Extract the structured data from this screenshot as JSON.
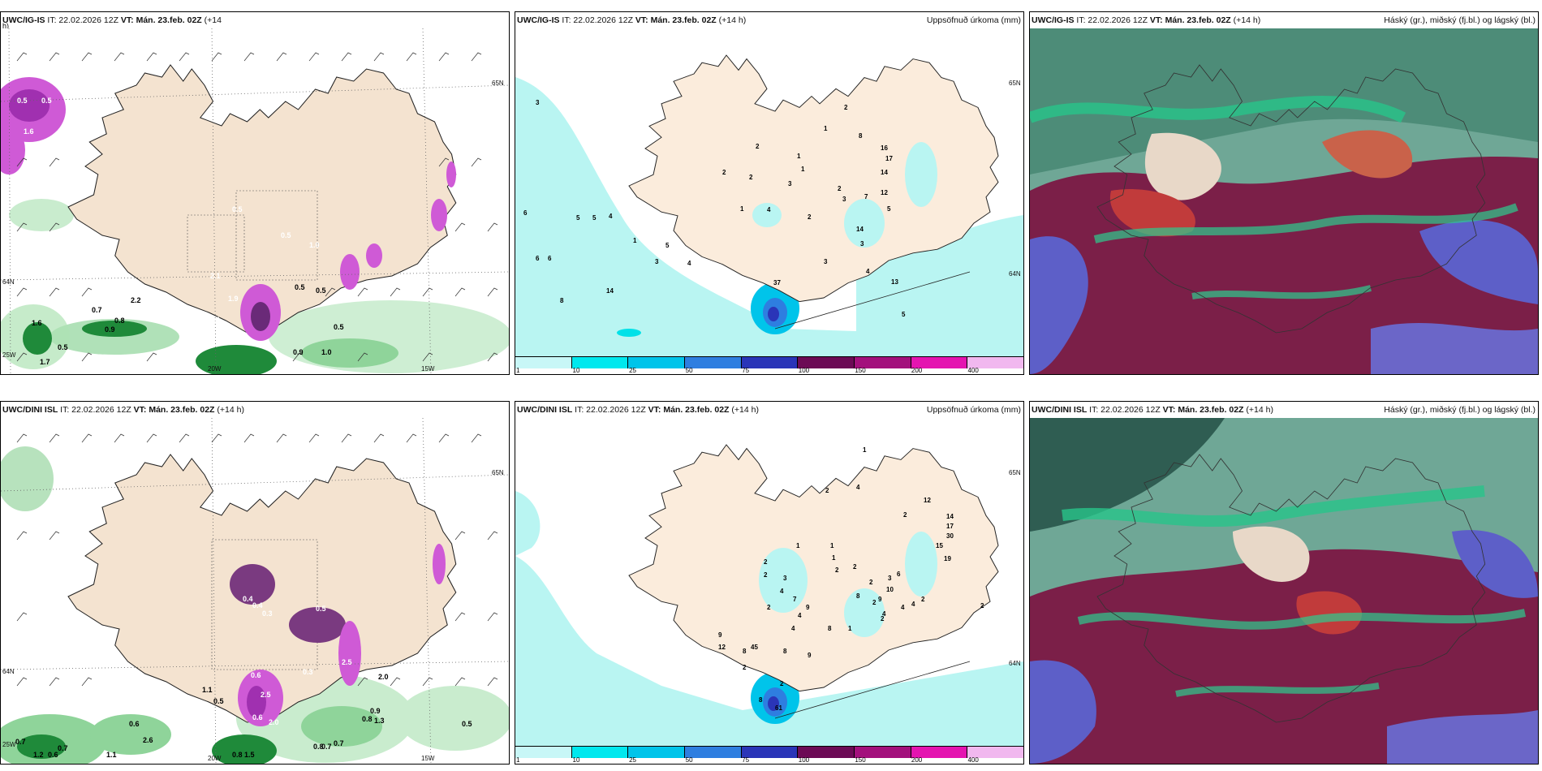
{
  "colors": {
    "land": "#f7ebdc",
    "precip_light": "#b9f5f2",
    "precip_cyan": "#00e1e8",
    "precip_blue": "#1a4fd1",
    "wind_green": "#1f8a3a",
    "wind_purple": "#a030b0",
    "cloud_high": "#5b8f78",
    "cloud_mid": "#7b1f48",
    "cloud_low": "#5d5fc8"
  },
  "panels": {
    "r1c1": {
      "header_model": "UWC/IG-IS",
      "header_it": "IT: 22.02.2026 12Z",
      "header_vt": "VT: Mán. 23.feb. 02Z",
      "header_lead": "(+14",
      "header_lead2": "h)",
      "labels": [
        {
          "text": "0.5",
          "style": "w"
        },
        {
          "text": "0.5",
          "style": "w"
        },
        {
          "text": "1.6",
          "style": "w"
        },
        {
          "text": "2.1",
          "style": "w"
        },
        {
          "text": "1.9",
          "style": "w"
        },
        {
          "text": "5.1",
          "style": "w"
        },
        {
          "text": "0.7",
          "style": "b"
        },
        {
          "text": "1.6",
          "style": "b"
        },
        {
          "text": "0.5",
          "style": "b"
        },
        {
          "text": "0.8",
          "style": "b"
        },
        {
          "text": "0.9",
          "style": "b"
        },
        {
          "text": "0.5",
          "style": "b"
        },
        {
          "text": "0.5",
          "style": "b"
        },
        {
          "text": "0.5",
          "style": "b"
        },
        {
          "text": "0.9",
          "style": "b"
        },
        {
          "text": "1.0",
          "style": "b"
        },
        {
          "text": "2.2",
          "style": "b"
        },
        {
          "text": "1.7",
          "style": "b"
        },
        {
          "text": "0.5",
          "style": "w"
        },
        {
          "text": "0.5",
          "style": "w"
        },
        {
          "text": "1.0",
          "style": "w"
        }
      ],
      "axis_labels": [
        "20W",
        "15W",
        "25W",
        "64N",
        "65N"
      ]
    },
    "r1c2": {
      "header_model": "UWC/IG-IS",
      "header_it": "IT: 22.02.2026 12Z",
      "header_vt": "VT: Mán. 23.feb. 02Z",
      "header_lead": "(+14 h)",
      "title_right": "Uppsöfnuð úrkoma (mm)",
      "labels": [
        "3",
        "6",
        "5",
        "5",
        "4",
        "6",
        "6",
        "8",
        "14",
        "1",
        "5",
        "3",
        "4",
        "2",
        "1",
        "4",
        "2",
        "1",
        "1",
        "3",
        "2",
        "3",
        "2",
        "1",
        "2",
        "8",
        "16",
        "17",
        "14",
        "12",
        "7",
        "5",
        "14",
        "3",
        "3",
        "4",
        "13",
        "5",
        "37",
        "2"
      ],
      "colorbar_labels": [
        "1",
        "10",
        "25",
        "50",
        "75",
        "100",
        "150",
        "200",
        "400"
      ],
      "colorbar_colors": [
        "#c8f7f7",
        "#00e8ee",
        "#00c4ea",
        "#2e7ee0",
        "#2a35b8",
        "#6c0a55",
        "#a3107c",
        "#e414b0",
        "#f1b8ef"
      ],
      "axis_labels": [
        "65N",
        "64N"
      ]
    },
    "r1c3": {
      "header_model": "UWC/IG-IS",
      "header_it": "IT: 22.02.2026 12Z",
      "header_vt": "VT: Mán. 23.feb. 02Z",
      "header_lead": "(+14 h)",
      "title_right": "Háský (gr.), miðský (fj.bl.) og lágský (bl.)"
    },
    "r2c1": {
      "header_model": "UWC/DINI ISL",
      "header_it": "IT: 22.02.2026 12Z",
      "header_vt": "VT: Mán. 23.feb. 02Z",
      "header_lead": "(+14 h)",
      "labels": [
        {
          "text": "0.4",
          "style": "w"
        },
        {
          "text": "0.4",
          "style": "w"
        },
        {
          "text": "0.3",
          "style": "w"
        },
        {
          "text": "0.5",
          "style": "w"
        },
        {
          "text": "0.6",
          "style": "w"
        },
        {
          "text": "2.5",
          "style": "w"
        },
        {
          "text": "0.6",
          "style": "w"
        },
        {
          "text": "2.0",
          "style": "w"
        },
        {
          "text": "0.3",
          "style": "w"
        },
        {
          "text": "2.5",
          "style": "w"
        },
        {
          "text": "1.1",
          "style": "b"
        },
        {
          "text": "0.5",
          "style": "b"
        },
        {
          "text": "0.6",
          "style": "b"
        },
        {
          "text": "2.6",
          "style": "b"
        },
        {
          "text": "1.1",
          "style": "b"
        },
        {
          "text": "0.7",
          "style": "b"
        },
        {
          "text": "1.2",
          "style": "b"
        },
        {
          "text": "0.6",
          "style": "b"
        },
        {
          "text": "0.7",
          "style": "b"
        },
        {
          "text": "0.9",
          "style": "b"
        },
        {
          "text": "0.8",
          "style": "b"
        },
        {
          "text": "1.3",
          "style": "b"
        },
        {
          "text": "0.8",
          "style": "b"
        },
        {
          "text": "0.7",
          "style": "b"
        },
        {
          "text": "0.7",
          "style": "b"
        },
        {
          "text": "0.5",
          "style": "b"
        },
        {
          "text": "2.0",
          "style": "b"
        },
        {
          "text": "1.5",
          "style": "b"
        },
        {
          "text": "0.8",
          "style": "b"
        }
      ],
      "axis_labels": [
        "20W",
        "15W",
        "25W",
        "64N",
        "65N"
      ]
    },
    "r2c2": {
      "header_model": "UWC/DINI ISL",
      "header_it": "IT: 22.02.2026 12Z",
      "header_vt": "VT: Mán. 23.feb. 02Z",
      "header_lead": "(+14 h)",
      "title_right": "Uppsöfnuð úrkoma (mm)",
      "labels": [
        "1",
        "2",
        "4",
        "12",
        "2",
        "14",
        "17",
        "30",
        "15",
        "19",
        "1",
        "1",
        "1",
        "2",
        "2",
        "3",
        "2",
        "10",
        "9",
        "4",
        "4",
        "4",
        "2",
        "2",
        "2",
        "2",
        "3",
        "4",
        "7",
        "2",
        "4",
        "9",
        "4",
        "8",
        "1",
        "2",
        "2",
        "6",
        "8",
        "9",
        "12",
        "8",
        "45",
        "8",
        "9",
        "2",
        "8",
        "61",
        "2"
      ],
      "colorbar_labels": [
        "1",
        "10",
        "25",
        "50",
        "75",
        "100",
        "150",
        "200",
        "400"
      ],
      "colorbar_colors": [
        "#c8f7f7",
        "#00e8ee",
        "#00c4ea",
        "#2e7ee0",
        "#2a35b8",
        "#6c0a55",
        "#a3107c",
        "#e414b0",
        "#f1b8ef"
      ],
      "axis_labels": [
        "65N",
        "64N"
      ]
    },
    "r2c3": {
      "header_model": "UWC/DINI ISL",
      "header_it": "IT: 22.02.2026 12Z",
      "header_vt": "VT: Mán. 23.feb. 02Z",
      "header_lead": "(+14 h)",
      "title_right": "Háský (gr.), miðský (fj.bl.) og lágský (bl.)"
    }
  }
}
